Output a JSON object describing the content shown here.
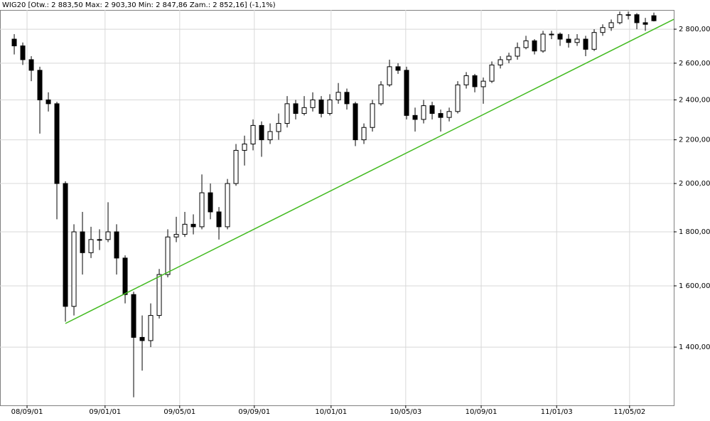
{
  "chart_data": {
    "type": "candlestick",
    "title": "WIG20 [Otw.: 2 883,50  Max: 2 903,30  Min: 2 847,86  Zam.: 2 852,16] (-1,1%)",
    "log_scale": true,
    "grid": true,
    "up_color": "#ffffff",
    "down_color": "#000000",
    "trend_color": "#44bb22",
    "ylim": [
      1233,
      2920
    ],
    "yticks": [
      {
        "value": 1400,
        "label": "1 400,00"
      },
      {
        "value": 1600,
        "label": "1 600,00"
      },
      {
        "value": 1800,
        "label": "1 800,00"
      },
      {
        "value": 2000,
        "label": "2 000,00"
      },
      {
        "value": 2200,
        "label": "2 200,00"
      },
      {
        "value": 2400,
        "label": "2 400,00"
      },
      {
        "value": 2600,
        "label": "2 600,00"
      },
      {
        "value": 2800,
        "label": "2 800,00"
      }
    ],
    "xlim": [
      -1.67,
      77.33
    ],
    "xticks": [
      {
        "value": 1.5,
        "label": "08/09/01"
      },
      {
        "value": 10.65,
        "label": "09/01/01"
      },
      {
        "value": 19.4,
        "label": "09/05/01"
      },
      {
        "value": 28.15,
        "label": "09/09/01"
      },
      {
        "value": 37.15,
        "label": "10/01/01"
      },
      {
        "value": 45.9,
        "label": "10/05/03"
      },
      {
        "value": 54.75,
        "label": "10/09/01"
      },
      {
        "value": 63.6,
        "label": "11/01/03"
      },
      {
        "value": 72.15,
        "label": "11/05/02"
      }
    ],
    "open": [
      2740,
      2700,
      2620,
      2560,
      2400,
      2380,
      2000,
      1530,
      1800,
      1720,
      1770,
      1770,
      1800,
      1700,
      1570,
      1430,
      1420,
      1500,
      1640,
      1780,
      1790,
      1830,
      1820,
      1960,
      1880,
      1820,
      2000,
      2150,
      2180,
      2270,
      2200,
      2240,
      2280,
      2380,
      2330,
      2360,
      2400,
      2330,
      2400,
      2440,
      2380,
      2200,
      2260,
      2380,
      2480,
      2580,
      2560,
      2320,
      2300,
      2370,
      2330,
      2310,
      2340,
      2480,
      2530,
      2470,
      2500,
      2590,
      2620,
      2640,
      2690,
      2730,
      2670,
      2770,
      2770,
      2740,
      2720,
      2740,
      2680,
      2780,
      2810,
      2840,
      2890,
      2890,
      2840,
      2883.5
    ],
    "high": [
      2770,
      2720,
      2640,
      2580,
      2440,
      2390,
      2010,
      1830,
      1880,
      1820,
      1810,
      1920,
      1830,
      1710,
      1580,
      1500,
      1540,
      1660,
      1810,
      1860,
      1880,
      1870,
      2040,
      2000,
      1900,
      2020,
      2180,
      2220,
      2300,
      2290,
      2280,
      2330,
      2420,
      2400,
      2420,
      2440,
      2420,
      2430,
      2490,
      2460,
      2390,
      2280,
      2400,
      2500,
      2620,
      2600,
      2580,
      2360,
      2400,
      2390,
      2350,
      2360,
      2500,
      2550,
      2540,
      2520,
      2610,
      2640,
      2660,
      2720,
      2760,
      2740,
      2790,
      2790,
      2780,
      2770,
      2770,
      2760,
      2800,
      2830,
      2860,
      2910,
      2910,
      2900,
      2870,
      2903.3
    ],
    "low": [
      2650,
      2590,
      2500,
      2230,
      2340,
      1850,
      1480,
      1500,
      1640,
      1700,
      1730,
      1760,
      1640,
      1540,
      1255,
      1330,
      1400,
      1490,
      1630,
      1760,
      1780,
      1790,
      1810,
      1850,
      1770,
      1810,
      1990,
      2080,
      2150,
      2120,
      2180,
      2200,
      2260,
      2300,
      2320,
      2340,
      2310,
      2320,
      2380,
      2350,
      2170,
      2180,
      2240,
      2370,
      2470,
      2540,
      2300,
      2240,
      2280,
      2300,
      2240,
      2290,
      2330,
      2460,
      2440,
      2380,
      2490,
      2570,
      2600,
      2620,
      2680,
      2650,
      2660,
      2740,
      2700,
      2690,
      2700,
      2640,
      2670,
      2760,
      2790,
      2830,
      2860,
      2800,
      2790,
      2847.86
    ],
    "close": [
      2700,
      2620,
      2560,
      2400,
      2380,
      2000,
      1530,
      1800,
      1720,
      1770,
      1770,
      1800,
      1700,
      1570,
      1430,
      1420,
      1500,
      1640,
      1780,
      1790,
      1830,
      1820,
      1960,
      1880,
      1820,
      2000,
      2150,
      2180,
      2270,
      2200,
      2240,
      2280,
      2380,
      2330,
      2360,
      2400,
      2330,
      2400,
      2440,
      2380,
      2200,
      2260,
      2380,
      2480,
      2580,
      2560,
      2320,
      2300,
      2370,
      2330,
      2310,
      2340,
      2480,
      2530,
      2470,
      2500,
      2590,
      2620,
      2640,
      2690,
      2730,
      2670,
      2770,
      2770,
      2740,
      2720,
      2740,
      2680,
      2780,
      2810,
      2840,
      2890,
      2890,
      2840,
      2830,
      2852.16
    ],
    "trendline": {
      "x": [
        6,
        77.33
      ],
      "y": [
        1474,
        2861
      ]
    }
  }
}
